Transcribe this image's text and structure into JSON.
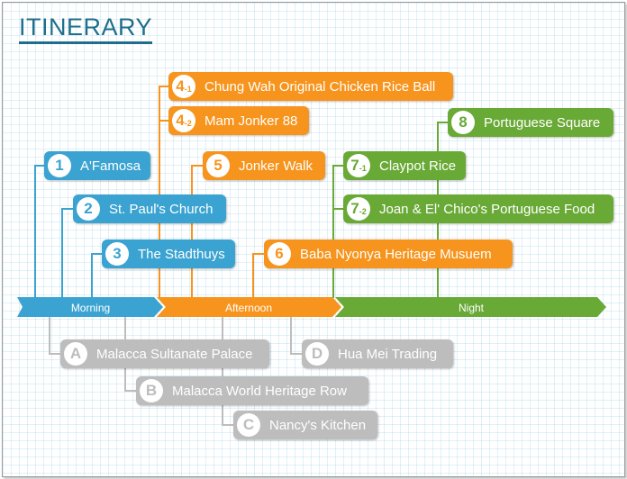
{
  "title": "ITINERARY",
  "timeline": {
    "morning": "Morning",
    "afternoon": "Afternoon",
    "night": "Night"
  },
  "colors": {
    "morning": "#3aa3d1",
    "afternoon": "#f7941d",
    "night": "#69a936",
    "optional": "#bdbdbd"
  },
  "stops": {
    "s1": {
      "num": "1",
      "sub": "",
      "label": "A'Famosa"
    },
    "s2": {
      "num": "2",
      "sub": "",
      "label": "St. Paul's Church"
    },
    "s3": {
      "num": "3",
      "sub": "",
      "label": "The Stadthuys"
    },
    "s41": {
      "num": "4",
      "sub": "-1",
      "label": "Chung Wah Original Chicken Rice Ball"
    },
    "s42": {
      "num": "4",
      "sub": "-2",
      "label": "Mam Jonker 88"
    },
    "s5": {
      "num": "5",
      "sub": "",
      "label": "Jonker Walk"
    },
    "s6": {
      "num": "6",
      "sub": "",
      "label": "Baba Nyonya Heritage Musuem"
    },
    "s71": {
      "num": "7",
      "sub": "-1",
      "label": "Claypot Rice"
    },
    "s72": {
      "num": "7",
      "sub": "-2",
      "label": "Joan & El' Chico's Portuguese Food"
    },
    "s8": {
      "num": "8",
      "sub": "",
      "label": "Portuguese Square"
    }
  },
  "optional": {
    "a": {
      "num": "A",
      "label": "Malacca Sultanate Palace"
    },
    "b": {
      "num": "B",
      "label": "Malacca World Heritage Row"
    },
    "c": {
      "num": "C",
      "label": "Nancy's Kitchen"
    },
    "d": {
      "num": "D",
      "label": "Hua Mei Trading"
    }
  }
}
